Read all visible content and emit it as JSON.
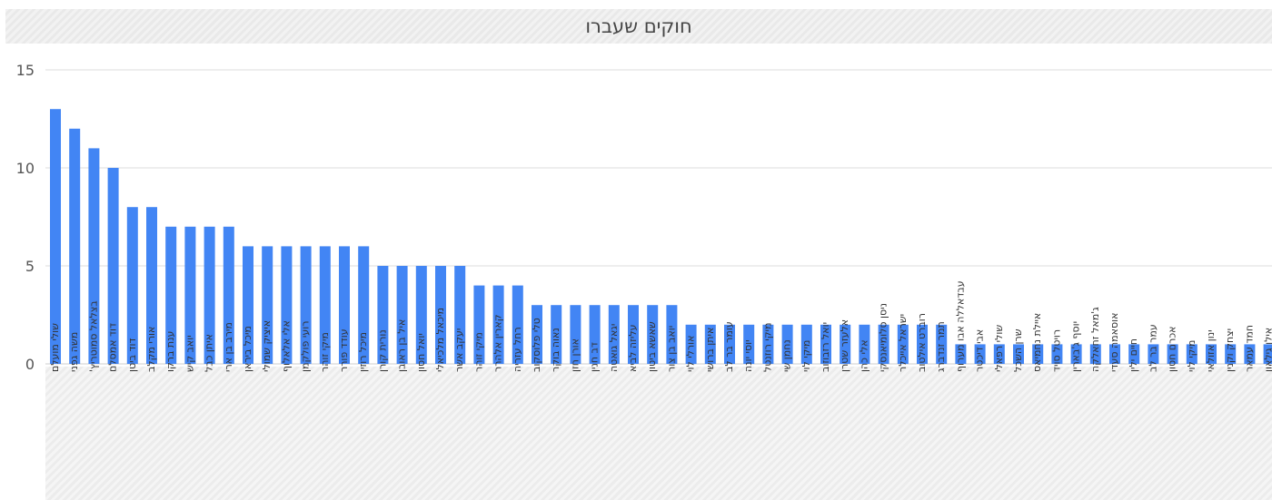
{
  "chart_data": {
    "type": "bar",
    "title": "חוקים שעברו",
    "xlabel": "",
    "ylabel": "",
    "ylim": [
      0,
      15
    ],
    "yticks": [
      0,
      5,
      10,
      15
    ],
    "grid": true,
    "legend": "none",
    "bar_color": "#4285f4",
    "grid_color": "#dddddd",
    "categories": [
      "שולי מועלם",
      "משה גפני",
      "בצלאל סמוטריץ'",
      "דוד אמסלם",
      "דוד ביטן",
      "אורי מקלב",
      "ענת ברקו",
      "יואב קיש",
      "איתן כבל",
      "מירב בן ארי",
      "מיכל ביראן",
      "איציק שמולי",
      "אלי אלאלוף",
      "רועי פולקמן",
      "מיקי זוהר",
      "עודד פורר",
      "מיכל רוזין",
      "נורית קורן",
      "איל בן ראובן",
      "יואל חסון",
      "מיכאל מלכיאלי",
      "יעקב אשר",
      "מיקי זוהר",
      "קארין אלהרר",
      "רחל עזריה",
      "טלי פלוסקוב",
      "נאוה בוקר",
      "אורן חזן",
      "דב חנין",
      "יגאל גואטה",
      "עליזה לביא",
      "שאשא ביטון",
      "יואב בן צור",
      "אורלי לוי",
      "איתן ברושי",
      "עומר בר לב",
      "יוסי יונה",
      "מיקי רוזנטל",
      "נחמן שי",
      "מיקי לוי",
      "יואל רזבוזוב",
      "אלעזר שטרן",
      "אלי כהן",
      "ניסן סלומיאנסקי",
      "ישראל אייכלר",
      "רוברט אילטוב",
      "תמר זנדברג",
      "עבדאללה אבו מערוף",
      "אבי דיכטר",
      "שולי רפאלי",
      "שרן השכל",
      "איילת נחמיאס",
      "רויטל סויד",
      "יוסף ג'בארין",
      "ג'מאל זחאלקה",
      "אוסאמה סעדי",
      "חיים ילין",
      "עמר בר לב",
      "אכרם חסון",
      "מיקי לוי",
      "ינון אזולאי",
      "יצחק וקנין",
      "חמד עמאר",
      "אילן גילאון"
    ],
    "values": [
      13,
      12,
      11,
      10,
      8,
      8,
      7,
      7,
      7,
      7,
      6,
      6,
      6,
      6,
      6,
      6,
      6,
      5,
      5,
      5,
      5,
      5,
      4,
      4,
      4,
      3,
      3,
      3,
      3,
      3,
      3,
      3,
      3,
      2,
      2,
      2,
      2,
      2,
      2,
      2,
      2,
      2,
      2,
      2,
      2,
      2,
      2,
      1,
      1,
      1,
      1,
      1,
      1,
      1,
      1,
      1,
      1,
      1,
      1,
      1,
      1,
      1,
      1,
      1
    ]
  }
}
